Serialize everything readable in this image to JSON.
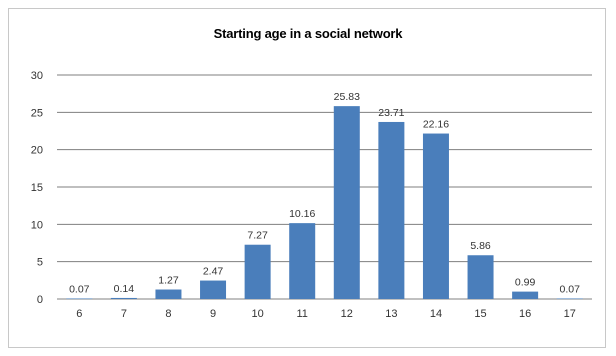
{
  "chart_data": {
    "type": "bar",
    "title": "Starting age in a social network",
    "xlabel": "",
    "ylabel": "",
    "categories": [
      "6",
      "7",
      "8",
      "9",
      "10",
      "11",
      "12",
      "13",
      "14",
      "15",
      "16",
      "17"
    ],
    "values": [
      0.07,
      0.14,
      1.27,
      2.47,
      7.27,
      10.16,
      25.83,
      23.71,
      22.16,
      5.86,
      0.99,
      0.07
    ],
    "data_labels": [
      "0.07",
      "0.14",
      "1.27",
      "2.47",
      "7.27",
      "10.16",
      "25.83",
      "23.71",
      "22.16",
      "5.86",
      "0.99",
      "0.07"
    ],
    "ylim": [
      0,
      30
    ],
    "yticks": [
      "0",
      "5",
      "10",
      "15",
      "20",
      "25",
      "30"
    ],
    "grid": true,
    "legend": "none",
    "colors": {
      "bar": "#4a7ebb",
      "grid": "#7f7f7f",
      "axis": "#808080"
    }
  }
}
